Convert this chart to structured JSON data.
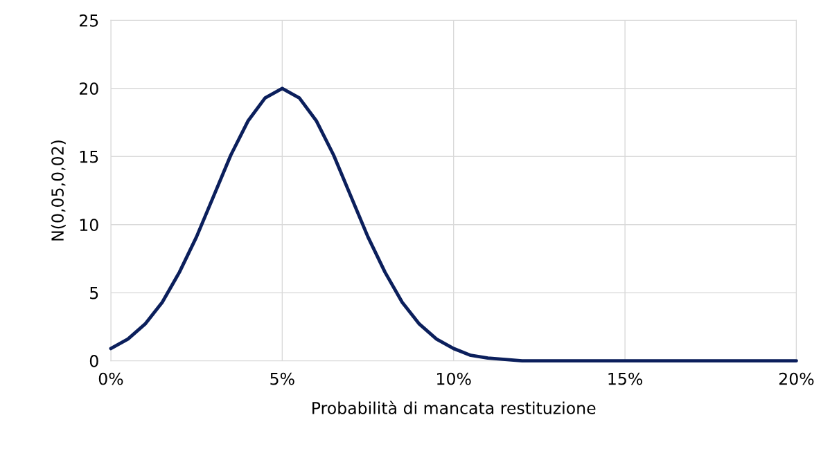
{
  "chart_data": {
    "type": "line",
    "xlabel": "Probabilità di mancata restituzione",
    "ylabel": "N(0,05,0,02)",
    "x": [
      0,
      0.005,
      0.01,
      0.015,
      0.02,
      0.025,
      0.03,
      0.035,
      0.04,
      0.045,
      0.05,
      0.055,
      0.06,
      0.065,
      0.07,
      0.075,
      0.08,
      0.085,
      0.09,
      0.095,
      0.1,
      0.105,
      0.11,
      0.115,
      0.12,
      0.13,
      0.14,
      0.15,
      0.16,
      0.17,
      0.18,
      0.19,
      0.2
    ],
    "series": [
      {
        "color": "#0b1f5c",
        "values": [
          0.9,
          1.6,
          2.7,
          4.3,
          6.5,
          9.1,
          12.1,
          15.1,
          17.6,
          19.3,
          20.0,
          19.3,
          17.6,
          15.1,
          12.1,
          9.1,
          6.5,
          4.3,
          2.7,
          1.6,
          0.9,
          0.4,
          0.2,
          0.1,
          0,
          0,
          0,
          0,
          0,
          0,
          0,
          0,
          0
        ]
      }
    ],
    "xlim": [
      0,
      0.2
    ],
    "xticks": [
      {
        "value": 0,
        "label": "0%"
      },
      {
        "value": 0.05,
        "label": "5%"
      },
      {
        "value": 0.1,
        "label": "10%"
      },
      {
        "value": 0.15,
        "label": "15%"
      },
      {
        "value": 0.2,
        "label": "20%"
      }
    ],
    "ylim": [
      0,
      25
    ],
    "yticks": [
      0,
      5,
      10,
      15,
      20,
      25
    ],
    "grid": true,
    "marker": "none",
    "line_style": "solid"
  }
}
